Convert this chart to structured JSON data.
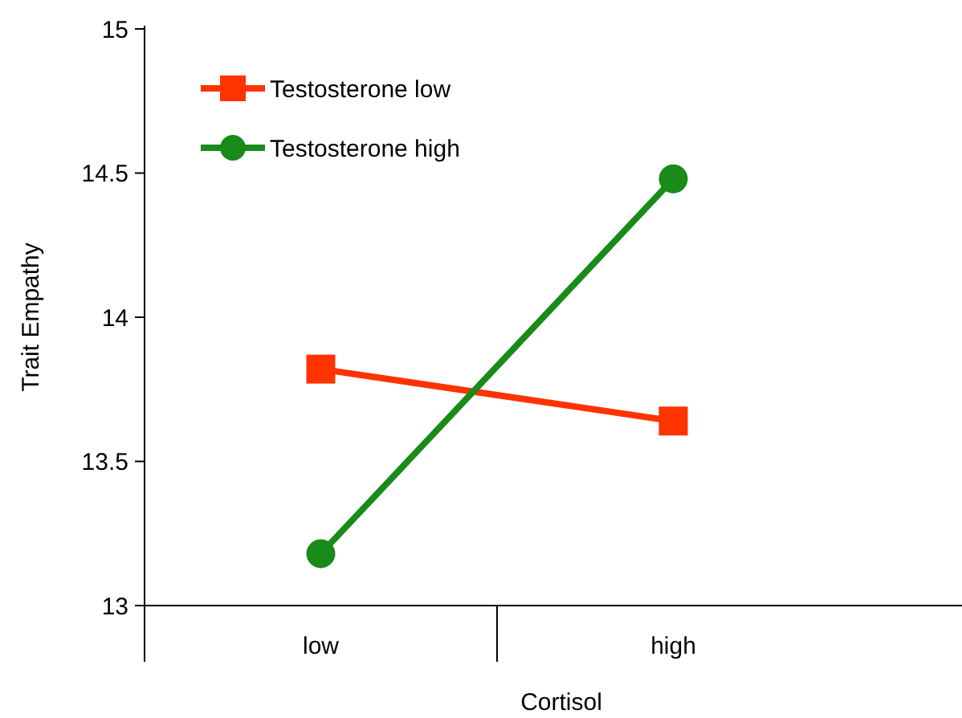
{
  "chart_data": {
    "type": "line",
    "xlabel": "Cortisol",
    "ylabel": "Trait Empathy",
    "categories": [
      "low",
      "high"
    ],
    "series": [
      {
        "name": "Testosterone low",
        "color": "#ff3300",
        "values": [
          13.82,
          13.64
        ],
        "marker": "square"
      },
      {
        "name": "Testosterone high",
        "color": "#1a8a1a",
        "values": [
          13.18,
          14.48
        ],
        "marker": "circle"
      }
    ],
    "ylim": [
      13,
      15
    ],
    "yticks": [
      13,
      13.5,
      14,
      14.5,
      15
    ],
    "legend": "top left",
    "grid": false
  }
}
